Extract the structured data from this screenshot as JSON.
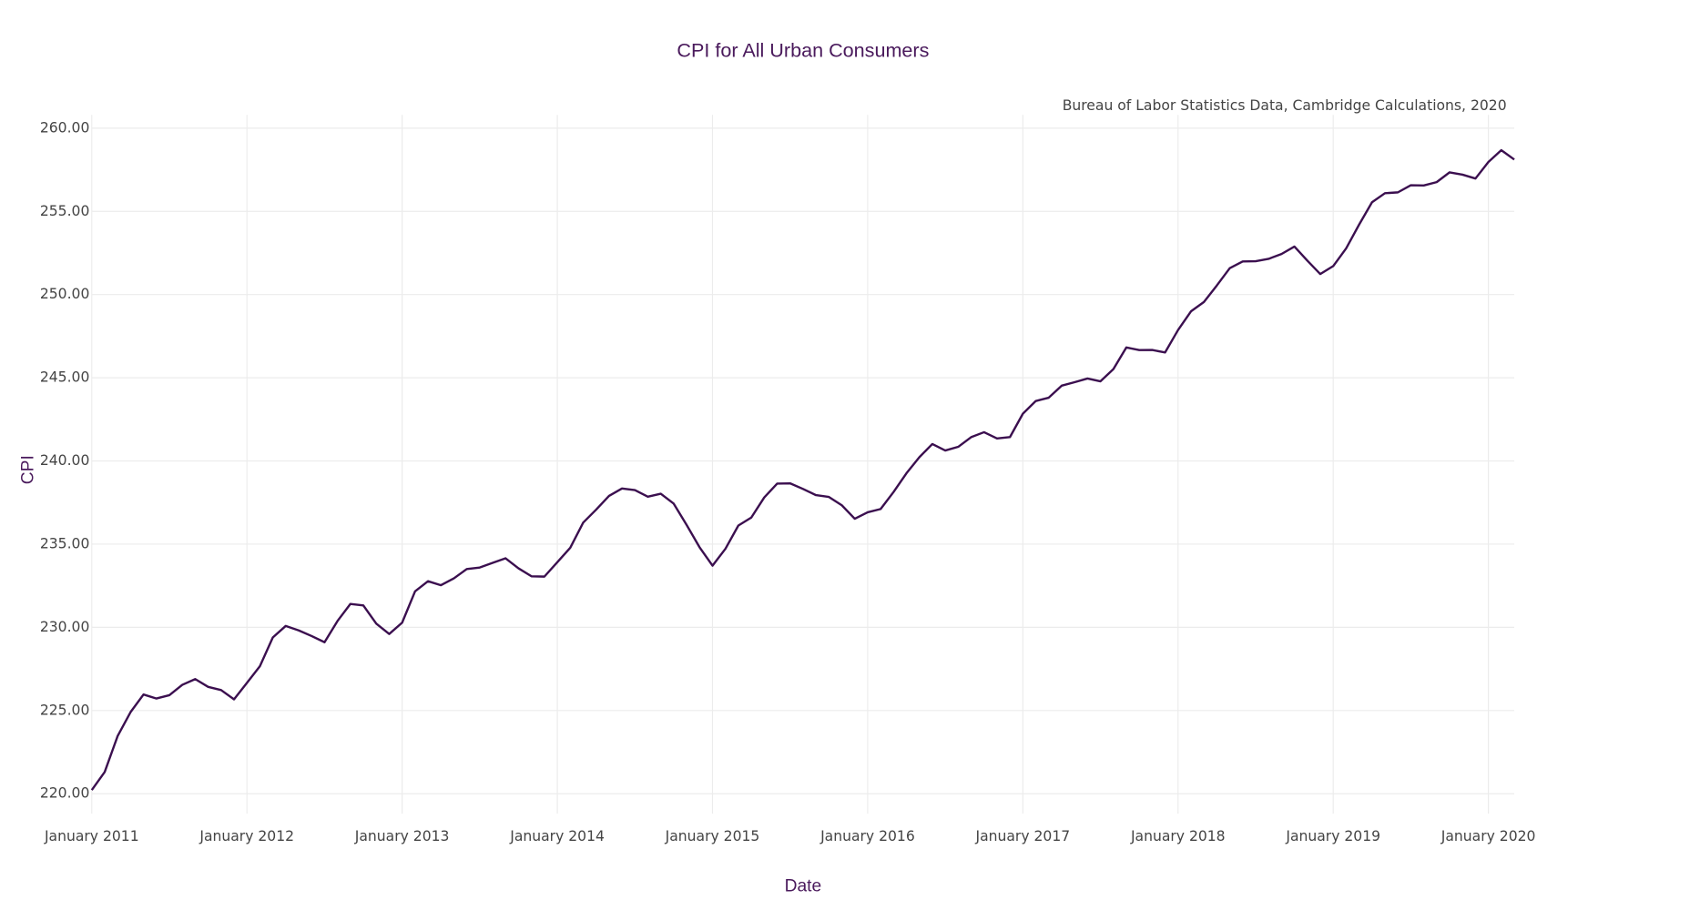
{
  "chart_data": {
    "type": "line",
    "title": "CPI for All Urban Consumers",
    "subtitle": "Bureau of Labor Statistics Data, Cambridge Calculations, 2020",
    "xlabel": "Date",
    "ylabel": "CPI",
    "x": [
      "2011-01",
      "2011-02",
      "2011-03",
      "2011-04",
      "2011-05",
      "2011-06",
      "2011-07",
      "2011-08",
      "2011-09",
      "2011-10",
      "2011-11",
      "2011-12",
      "2012-01",
      "2012-02",
      "2012-03",
      "2012-04",
      "2012-05",
      "2012-06",
      "2012-07",
      "2012-08",
      "2012-09",
      "2012-10",
      "2012-11",
      "2012-12",
      "2013-01",
      "2013-02",
      "2013-03",
      "2013-04",
      "2013-05",
      "2013-06",
      "2013-07",
      "2013-08",
      "2013-09",
      "2013-10",
      "2013-11",
      "2013-12",
      "2014-01",
      "2014-02",
      "2014-03",
      "2014-04",
      "2014-05",
      "2014-06",
      "2014-07",
      "2014-08",
      "2014-09",
      "2014-10",
      "2014-11",
      "2014-12",
      "2015-01",
      "2015-02",
      "2015-03",
      "2015-04",
      "2015-05",
      "2015-06",
      "2015-07",
      "2015-08",
      "2015-09",
      "2015-10",
      "2015-11",
      "2015-12",
      "2016-01",
      "2016-02",
      "2016-03",
      "2016-04",
      "2016-05",
      "2016-06",
      "2016-07",
      "2016-08",
      "2016-09",
      "2016-10",
      "2016-11",
      "2016-12",
      "2017-01",
      "2017-02",
      "2017-03",
      "2017-04",
      "2017-05",
      "2017-06",
      "2017-07",
      "2017-08",
      "2017-09",
      "2017-10",
      "2017-11",
      "2017-12",
      "2018-01",
      "2018-02",
      "2018-03",
      "2018-04",
      "2018-05",
      "2018-06",
      "2018-07",
      "2018-08",
      "2018-09",
      "2018-10",
      "2018-11",
      "2018-12",
      "2019-01",
      "2019-02",
      "2019-03",
      "2019-04",
      "2019-05",
      "2019-06",
      "2019-07",
      "2019-08",
      "2019-09",
      "2019-10",
      "2019-11",
      "2019-12",
      "2020-01",
      "2020-02",
      "2020-03"
    ],
    "series": [
      {
        "name": "CPI",
        "color": "#3b0f4f",
        "values": [
          220.223,
          221.309,
          223.467,
          224.906,
          225.964,
          225.722,
          225.922,
          226.545,
          226.889,
          226.421,
          226.23,
          225.672,
          226.665,
          227.663,
          229.392,
          230.085,
          229.815,
          229.478,
          229.104,
          230.379,
          231.407,
          231.317,
          230.221,
          229.601,
          230.28,
          232.166,
          232.773,
          232.531,
          232.945,
          233.504,
          233.596,
          233.877,
          234.149,
          233.546,
          233.069,
          233.049,
          233.916,
          234.781,
          236.293,
          237.072,
          237.9,
          238.343,
          238.25,
          237.852,
          238.031,
          237.433,
          236.151,
          234.812,
          233.707,
          234.722,
          236.119,
          236.599,
          237.805,
          238.638,
          238.654,
          238.316,
          237.945,
          237.838,
          237.336,
          236.525,
          236.916,
          237.111,
          238.132,
          239.261,
          240.229,
          241.018,
          240.628,
          240.849,
          241.428,
          241.729,
          241.353,
          241.432,
          242.839,
          243.603,
          243.801,
          244.524,
          244.733,
          244.955,
          244.786,
          245.519,
          246.819,
          246.663,
          246.669,
          246.524,
          247.867,
          248.991,
          249.554,
          250.546,
          251.588,
          251.989,
          252.006,
          252.146,
          252.439,
          252.885,
          252.038,
          251.233,
          251.712,
          252.776,
          254.202,
          255.548,
          256.092,
          256.143,
          256.571,
          256.558,
          256.759,
          257.346,
          257.208,
          256.974,
          257.971,
          258.678,
          258.115
        ]
      }
    ],
    "xlim": [
      "2011-01",
      "2020-03"
    ],
    "xticks": [
      {
        "value": "2011-01",
        "label": "January 2011"
      },
      {
        "value": "2012-01",
        "label": "January 2012"
      },
      {
        "value": "2013-01",
        "label": "January 2013"
      },
      {
        "value": "2014-01",
        "label": "January 2014"
      },
      {
        "value": "2015-01",
        "label": "January 2015"
      },
      {
        "value": "2016-01",
        "label": "January 2016"
      },
      {
        "value": "2017-01",
        "label": "January 2017"
      },
      {
        "value": "2018-01",
        "label": "January 2018"
      },
      {
        "value": "2019-01",
        "label": "January 2019"
      },
      {
        "value": "2020-01",
        "label": "January 2020"
      }
    ],
    "ylim": [
      218.8,
      260.8
    ],
    "yticks": [
      {
        "value": 220,
        "label": "220.00"
      },
      {
        "value": 225,
        "label": "225.00"
      },
      {
        "value": 230,
        "label": "230.00"
      },
      {
        "value": 235,
        "label": "235.00"
      },
      {
        "value": 240,
        "label": "240.00"
      },
      {
        "value": 245,
        "label": "245.00"
      },
      {
        "value": 250,
        "label": "250.00"
      },
      {
        "value": 255,
        "label": "255.00"
      },
      {
        "value": 260,
        "label": "260.00"
      }
    ],
    "grid": true
  }
}
